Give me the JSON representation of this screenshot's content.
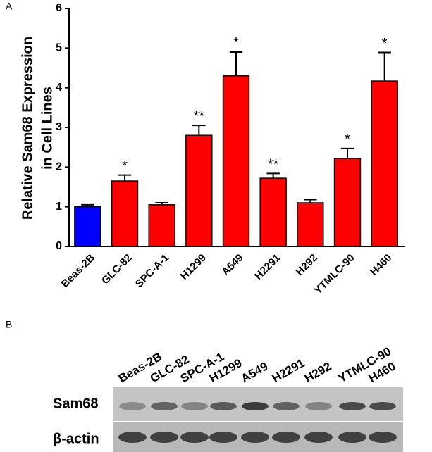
{
  "chart_data": {
    "type": "bar",
    "y_label_lines": [
      "Relative Sam68 Expression",
      "in Cell Lines"
    ],
    "categories": [
      "Beas-2B",
      "GLC-82",
      "SPC-A-1",
      "H1299",
      "A549",
      "H2291",
      "H292",
      "YTMLC-90",
      "H460"
    ],
    "values": [
      1.0,
      1.65,
      1.05,
      2.8,
      4.3,
      1.72,
      1.1,
      2.22,
      4.17
    ],
    "errors": [
      0.05,
      0.15,
      0.05,
      0.25,
      0.6,
      0.12,
      0.08,
      0.25,
      0.72
    ],
    "colors": [
      "#0000ff",
      "#ff0000",
      "#ff0000",
      "#ff0000",
      "#ff0000",
      "#ff0000",
      "#ff0000",
      "#ff0000",
      "#ff0000"
    ],
    "annotations": [
      null,
      "*",
      null,
      "**",
      "*",
      "**",
      null,
      "*",
      "*"
    ],
    "ylim": [
      0,
      6
    ],
    "yticks": [
      0,
      1,
      2,
      3,
      4,
      5,
      6
    ]
  },
  "panel_labels": [
    "A",
    "B"
  ],
  "blot": {
    "lanes": [
      "Beas-2B",
      "GLC-82",
      "SPC-A-1",
      "H1299",
      "A549",
      "H2291",
      "H292",
      "YTMLC-90",
      "H460"
    ],
    "rows": [
      "Sam68",
      "β-actin"
    ]
  }
}
